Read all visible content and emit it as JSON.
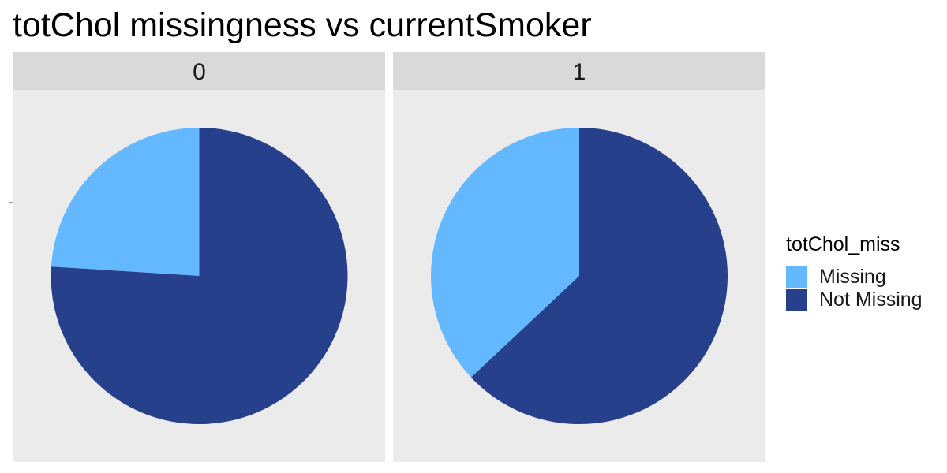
{
  "chart_data": {
    "type": "pie",
    "title": "totChol missingness vs currentSmoker",
    "facet_variable": "currentSmoker",
    "facets": [
      {
        "label": "0",
        "slices": [
          {
            "name": "Missing",
            "fraction": 0.24
          },
          {
            "name": "Not Missing",
            "fraction": 0.76
          }
        ]
      },
      {
        "label": "1",
        "slices": [
          {
            "name": "Missing",
            "fraction": 0.37
          },
          {
            "name": "Not Missing",
            "fraction": 0.63
          }
        ]
      }
    ],
    "legend": {
      "title": "totChol_miss",
      "position": "right",
      "entries": [
        {
          "name": "Missing",
          "color": "#63b8ff"
        },
        {
          "name": "Not Missing",
          "color": "#27408b"
        }
      ]
    },
    "colors": {
      "panel_background": "#ebebeb",
      "strip_background": "#d9d9d9"
    }
  }
}
